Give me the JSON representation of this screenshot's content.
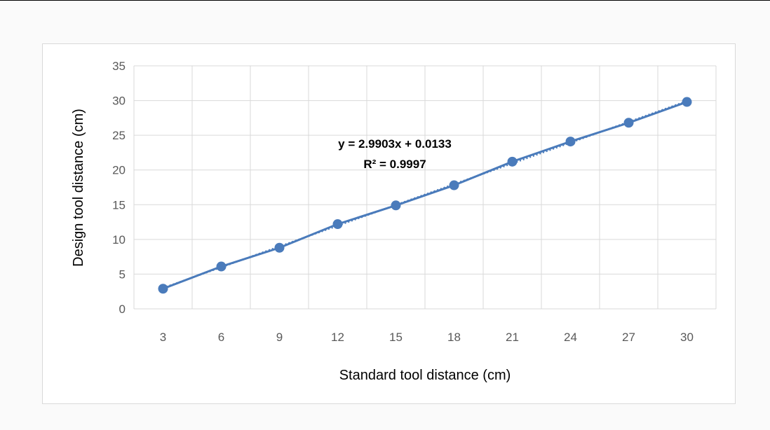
{
  "chart_data": {
    "type": "line",
    "title": "",
    "xlabel": "Standard tool distance (cm)",
    "ylabel": "Design tool distance (cm)",
    "categories": [
      "3",
      "6",
      "9",
      "12",
      "15",
      "18",
      "21",
      "24",
      "27",
      "30"
    ],
    "series": [
      {
        "values": [
          2.9,
          6.1,
          8.8,
          12.2,
          14.9,
          17.8,
          21.2,
          24.1,
          26.8,
          29.8
        ],
        "color": "#4a7bbb"
      }
    ],
    "trendline": {
      "type": "linear",
      "style": "dotted",
      "slope": 2.9903,
      "intercept": 0.0133,
      "equation_label": "y = 2.9903x + 0.0133",
      "r2_label": "R² = 0.9997"
    },
    "ylim": [
      0,
      35
    ],
    "yticks": [
      "0",
      "5",
      "10",
      "15",
      "20",
      "25",
      "30",
      "35"
    ],
    "grid": true,
    "legend": "none"
  }
}
